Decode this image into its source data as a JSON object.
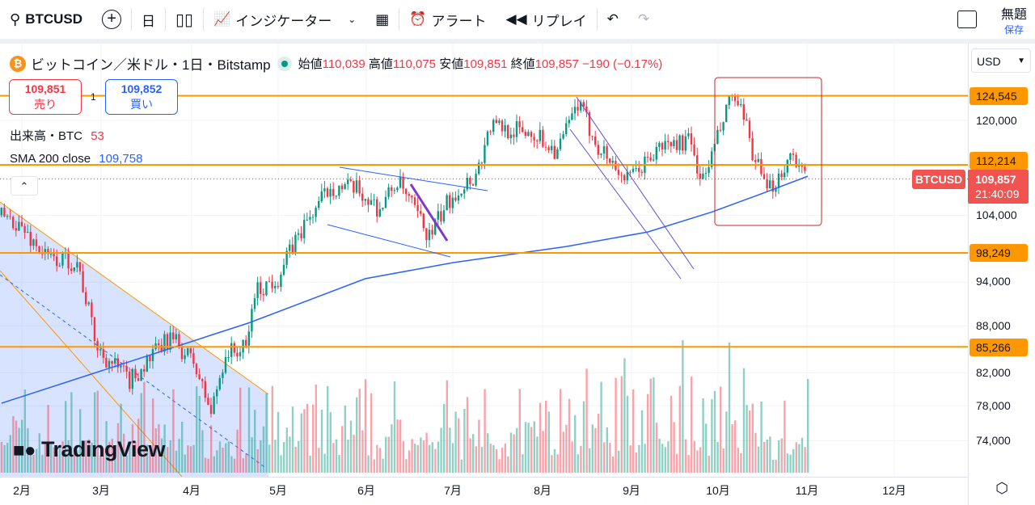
{
  "toolbar": {
    "symbol": "BTCUSD",
    "interval": "日",
    "indicators": "インジケーター",
    "alert": "アラート",
    "replay": "リプレイ",
    "layout_name": "無題",
    "save": "保存"
  },
  "legend": {
    "title": "ビットコイン／米ドル・1日・Bitstamp",
    "open_label": "始値",
    "open": "110,039",
    "high_label": "高値",
    "high": "110,075",
    "low_label": "安値",
    "low": "109,851",
    "close_label": "終値",
    "close": "109,857",
    "change": "−190 (−0.17%)"
  },
  "trade": {
    "sell_price": "109,851",
    "sell_label": "売り",
    "spread": "1",
    "buy_price": "109,852",
    "buy_label": "買い"
  },
  "indicators": {
    "volume_label": "出来高・BTC",
    "volume_value": "53",
    "sma_label": "SMA 200 close",
    "sma_value": "109,758"
  },
  "axis": {
    "currency": "USD",
    "ticks": [
      "120,000",
      "104,000",
      "94,000",
      "88,000",
      "82,000",
      "78,000",
      "74,000"
    ],
    "level_tags": [
      "124,545",
      "112,214",
      "98,249",
      "85,266"
    ],
    "symbol_tag": "BTCUSD",
    "last_price": "109,857",
    "countdown": "21:40:09"
  },
  "time_axis": [
    "2月",
    "3月",
    "4月",
    "5月",
    "6月",
    "7月",
    "8月",
    "9月",
    "10月",
    "11月",
    "12月"
  ],
  "colors": {
    "up": "#089981",
    "down": "#f23645",
    "level": "#ff9800",
    "sma": "#2962ff"
  },
  "chart_data": {
    "type": "candlestick",
    "scale": "log",
    "x_unit": "days since Feb 1",
    "price_path": [
      [
        -7,
        104000
      ],
      [
        -2,
        103000
      ],
      [
        9,
        97400
      ],
      [
        19,
        97000
      ],
      [
        26,
        85000
      ],
      [
        37,
        81000
      ],
      [
        51,
        86500
      ],
      [
        59,
        83300
      ],
      [
        65,
        77200
      ],
      [
        70,
        84500
      ],
      [
        77,
        85000
      ],
      [
        80,
        92600
      ],
      [
        88,
        94700
      ],
      [
        95,
        101000
      ],
      [
        106,
        108700
      ],
      [
        115,
        108000
      ],
      [
        123,
        105000
      ],
      [
        129,
        109500
      ],
      [
        140,
        100700
      ],
      [
        148,
        107400
      ],
      [
        156,
        110500
      ],
      [
        161,
        119000
      ],
      [
        176,
        117700
      ],
      [
        184,
        114500
      ],
      [
        191,
        123000
      ],
      [
        198,
        115500
      ],
      [
        208,
        109500
      ],
      [
        220,
        115500
      ],
      [
        229,
        116300
      ],
      [
        234,
        109500
      ],
      [
        240,
        118300
      ],
      [
        244,
        124700
      ],
      [
        248,
        120000
      ],
      [
        252,
        113000
      ],
      [
        256,
        107400
      ],
      [
        265,
        114500
      ],
      [
        269,
        109900
      ]
    ],
    "sma200": [
      [
        -7,
        78300
      ],
      [
        78,
        88400
      ],
      [
        118,
        94500
      ],
      [
        148,
        96800
      ],
      [
        187,
        99200
      ],
      [
        215,
        101400
      ],
      [
        237,
        104500
      ],
      [
        254,
        107400
      ],
      [
        270,
        110300
      ]
    ],
    "levels": [
      124545,
      112214,
      98249,
      85266
    ]
  }
}
